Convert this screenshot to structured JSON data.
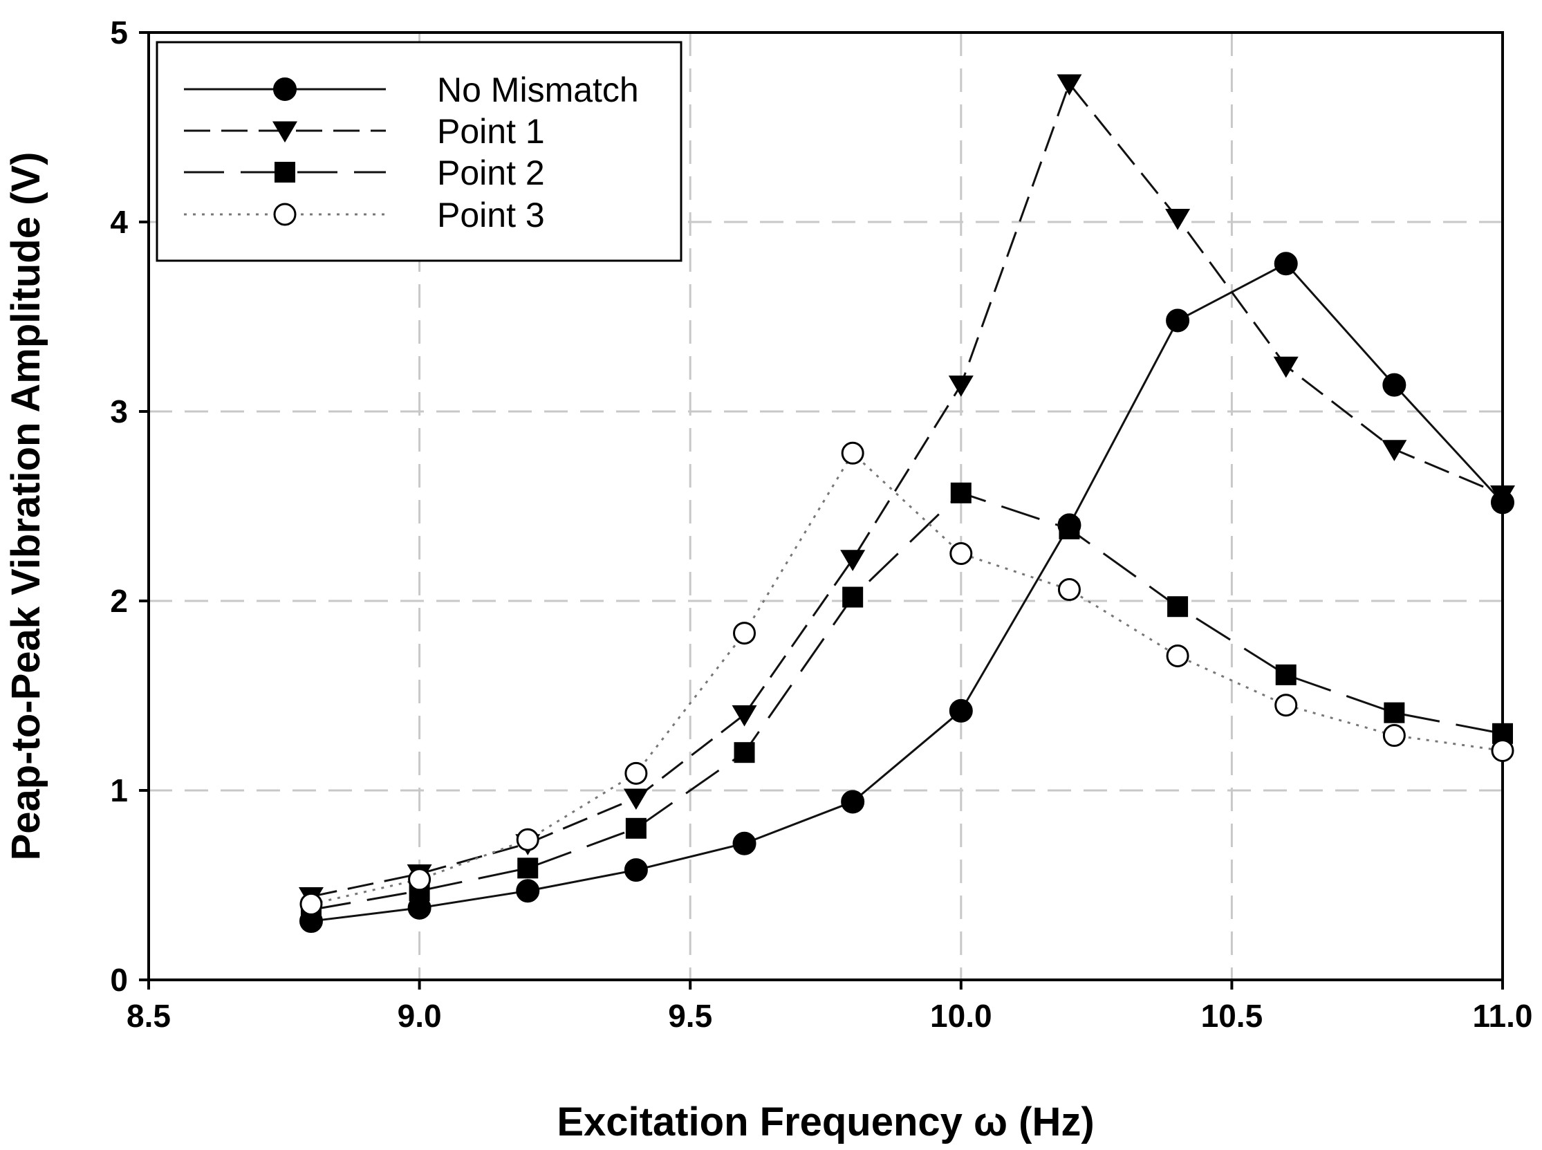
{
  "chart_data": {
    "type": "line",
    "title": "",
    "xlabel": "Excitation Frequency ω (Hz)",
    "ylabel": "Peap-to-Peak Vibration Amplitude (V)",
    "xlim": [
      8.5,
      11.0
    ],
    "ylim": [
      0,
      5
    ],
    "xticks": [
      "8.5",
      "9.0",
      "9.5",
      "10.0",
      "10.5",
      "11.0"
    ],
    "yticks": [
      "0",
      "1",
      "2",
      "3",
      "4",
      "5"
    ],
    "grid": true,
    "legend_position": "top-left",
    "x": [
      8.8,
      9.0,
      9.2,
      9.4,
      9.6,
      9.8,
      10.0,
      10.2,
      10.4,
      10.6,
      10.8,
      11.0
    ],
    "series": [
      {
        "name": "No Mismatch",
        "line": "solid",
        "marker": "circle-filled",
        "values": [
          0.31,
          0.38,
          0.47,
          0.58,
          0.72,
          0.94,
          1.42,
          2.4,
          3.48,
          3.78,
          3.14,
          2.52
        ]
      },
      {
        "name": "Point 1",
        "line": "dashed",
        "marker": "triangle-down-filled",
        "values": [
          0.44,
          0.56,
          0.72,
          0.96,
          1.4,
          2.22,
          3.14,
          4.73,
          4.02,
          3.24,
          2.8,
          2.56
        ]
      },
      {
        "name": "Point 2",
        "line": "long-dashed",
        "marker": "square-filled",
        "values": [
          0.37,
          0.47,
          0.59,
          0.8,
          1.2,
          2.02,
          2.57,
          2.38,
          1.97,
          1.61,
          1.41,
          1.3
        ]
      },
      {
        "name": "Point 3",
        "line": "dotted",
        "marker": "circle-open",
        "values": [
          0.4,
          0.53,
          0.74,
          1.09,
          1.83,
          2.78,
          2.25,
          2.06,
          1.71,
          1.45,
          1.29,
          1.21
        ]
      }
    ]
  }
}
